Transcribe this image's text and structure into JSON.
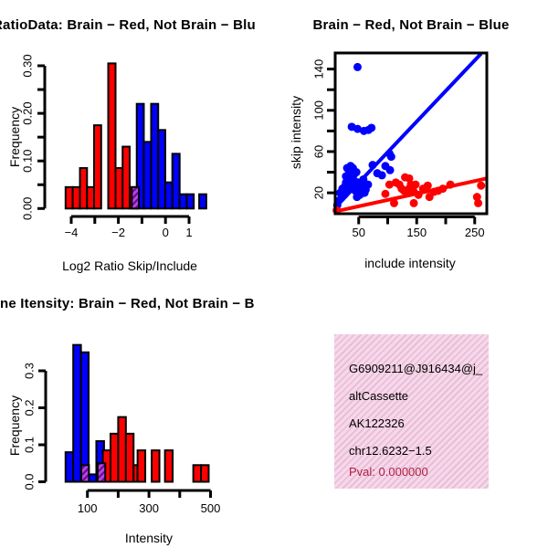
{
  "colors": {
    "black": "#000000",
    "red": "#FF0000",
    "blue": "#0000FF",
    "overlap_base": "#BB44E0",
    "overlap_stripe": "#660A99",
    "pval": "#AF2044",
    "infobox_bg": "#F9D5EF",
    "infobox_stripe": "#C8A8A0"
  },
  "chart_data": [
    {
      "id": "log2-ratio-histogram",
      "type": "bar",
      "title": "RatioData: Brain − Red, Not Brain − Blu",
      "xlabel": "Log2 Ratio Skip/Include",
      "ylabel": "Frequency",
      "xlim": [
        -4.5,
        1.8
      ],
      "ylim": [
        0,
        0.3
      ],
      "x_ticks": [
        {
          "v": -4,
          "l": "−4"
        },
        {
          "v": -3
        },
        {
          "v": -2,
          "l": "−2"
        },
        {
          "v": -1
        },
        {
          "v": 0,
          "l": "0"
        },
        {
          "v": 1,
          "l": "1"
        }
      ],
      "y_ticks": [
        {
          "v": 0,
          "l": "0.00"
        },
        {
          "v": 0.05
        },
        {
          "v": 0.1,
          "l": "0.10"
        },
        {
          "v": 0.15
        },
        {
          "v": 0.2,
          "l": "0.20"
        },
        {
          "v": 0.25
        },
        {
          "v": 0.3,
          "l": "0.30"
        }
      ],
      "bars": [
        {
          "x0": -4.24,
          "x1": -3.94,
          "h": 0.045,
          "c": "red"
        },
        {
          "x0": -3.94,
          "x1": -3.63,
          "h": 0.045,
          "c": "red"
        },
        {
          "x0": -3.63,
          "x1": -3.33,
          "h": 0.085,
          "c": "red"
        },
        {
          "x0": -3.33,
          "x1": -3.03,
          "h": 0.045,
          "c": "red"
        },
        {
          "x0": -3.03,
          "x1": -2.73,
          "h": 0.175,
          "c": "red"
        },
        {
          "x0": -2.43,
          "x1": -2.12,
          "h": 0.305,
          "c": "red"
        },
        {
          "x0": -2.12,
          "x1": -1.82,
          "h": 0.085,
          "c": "red"
        },
        {
          "x0": -1.82,
          "x1": -1.52,
          "h": 0.13,
          "c": "red"
        },
        {
          "x0": -1.52,
          "x1": -1.22,
          "h": 0.045,
          "c": "red"
        },
        {
          "x0": -1.22,
          "x1": -0.92,
          "h": 0.22,
          "c": "blue"
        },
        {
          "x0": -0.92,
          "x1": -0.61,
          "h": 0.14,
          "c": "blue"
        },
        {
          "x0": -0.61,
          "x1": -0.31,
          "h": 0.22,
          "c": "blue"
        },
        {
          "x0": -0.31,
          "x1": -0.01,
          "h": 0.165,
          "c": "blue"
        },
        {
          "x0": -0.01,
          "x1": 0.29,
          "h": 0.055,
          "c": "blue"
        },
        {
          "x0": 0.29,
          "x1": 0.6,
          "h": 0.115,
          "c": "blue"
        },
        {
          "x0": 0.6,
          "x1": 0.9,
          "h": 0.03,
          "c": "blue"
        },
        {
          "x0": 0.9,
          "x1": 1.2,
          "h": 0.03,
          "c": "blue"
        },
        {
          "x0": 1.43,
          "x1": 1.73,
          "h": 0.03,
          "c": "blue"
        },
        {
          "x0": -1.43,
          "x1": -1.13,
          "h": 0.045,
          "c": "overlap"
        }
      ]
    },
    {
      "id": "intensity-scatter",
      "type": "scatter",
      "title": "Brain − Red, Not Brain − Blue",
      "xlabel": "include intensity",
      "ylabel": "skip intensity",
      "xlim": [
        9,
        271
      ],
      "ylim": [
        0,
        155
      ],
      "x_ticks": [
        {
          "v": 50,
          "l": "50"
        },
        {
          "v": 100
        },
        {
          "v": 150,
          "l": "150"
        },
        {
          "v": 200
        },
        {
          "v": 250,
          "l": "250"
        }
      ],
      "y_ticks": [
        {
          "v": 20,
          "l": "20"
        },
        {
          "v": 40
        },
        {
          "v": 60,
          "l": "60"
        },
        {
          "v": 80
        },
        {
          "v": 100,
          "l": "100"
        },
        {
          "v": 120
        },
        {
          "v": 140,
          "l": "140"
        }
      ],
      "series": [
        {
          "name": "not-brain-blue",
          "color": "blue",
          "points": [
            [
              48,
              142
            ],
            [
              38,
              84
            ],
            [
              48,
              82
            ],
            [
              59,
              80
            ],
            [
              67,
              81
            ],
            [
              72,
              83
            ],
            [
              103,
              58
            ],
            [
              106,
              55
            ],
            [
              74,
              47
            ],
            [
              82,
              39
            ],
            [
              96,
              46
            ],
            [
              104,
              42
            ],
            [
              90,
              37
            ],
            [
              30,
              44
            ],
            [
              36,
              46
            ],
            [
              40,
              44
            ],
            [
              34,
              40
            ],
            [
              28,
              36
            ],
            [
              42,
              38
            ],
            [
              46,
              40
            ],
            [
              38,
              34
            ],
            [
              32,
              30
            ],
            [
              44,
              31
            ],
            [
              50,
              30
            ],
            [
              36,
              28
            ],
            [
              28,
              30
            ],
            [
              55,
              28
            ],
            [
              58,
              33
            ],
            [
              48,
              26
            ],
            [
              40,
              25
            ],
            [
              34,
              24
            ],
            [
              30,
              22
            ],
            [
              44,
              22
            ],
            [
              50,
              24
            ],
            [
              56,
              25
            ],
            [
              62,
              23
            ],
            [
              66,
              28
            ],
            [
              25,
              18
            ],
            [
              20,
              15
            ],
            [
              15,
              12
            ],
            [
              13,
              8
            ],
            [
              52,
              18
            ],
            [
              47,
              16
            ],
            [
              60,
              20
            ],
            [
              22,
              24
            ],
            [
              18,
              20
            ],
            [
              26,
              26
            ]
          ]
        },
        {
          "name": "brain-red",
          "color": "red",
          "points": [
            [
              12,
              3
            ],
            [
              96,
              19
            ],
            [
              103,
              28
            ],
            [
              111,
              10
            ],
            [
              114,
              30
            ],
            [
              120,
              28
            ],
            [
              124,
              24
            ],
            [
              128,
              22
            ],
            [
              130,
              35
            ],
            [
              135,
              22
            ],
            [
              137,
              34
            ],
            [
              137,
              24
            ],
            [
              140,
              28
            ],
            [
              145,
              21
            ],
            [
              145,
              10
            ],
            [
              148,
              28
            ],
            [
              153,
              18
            ],
            [
              161,
              24
            ],
            [
              169,
              27
            ],
            [
              172,
              16
            ],
            [
              180,
              21
            ],
            [
              187,
              22
            ],
            [
              195,
              24
            ],
            [
              208,
              28
            ],
            [
              261,
              27
            ],
            [
              254,
              16
            ],
            [
              256,
              10
            ]
          ]
        }
      ],
      "lines": [
        {
          "name": "fit-line-blue",
          "color": "blue",
          "p": [
            10,
            6,
            261,
            155
          ]
        },
        {
          "name": "fit-line-red",
          "color": "red",
          "p": [
            10,
            2,
            271,
            34
          ]
        }
      ]
    },
    {
      "id": "gene-intensity-histogram",
      "type": "bar",
      "title": "ne Itensity: Brain − Red, Not Brain − B",
      "xlabel": "Intensity",
      "ylabel": "Frequency",
      "xlim": [
        25,
        520
      ],
      "ylim": [
        0,
        0.37
      ],
      "x_ticks": [
        {
          "v": 100,
          "l": "100"
        },
        {
          "v": 200
        },
        {
          "v": 300,
          "l": "300"
        },
        {
          "v": 400
        },
        {
          "v": 500,
          "l": "500"
        }
      ],
      "y_ticks": [
        {
          "v": 0,
          "l": "0.0"
        },
        {
          "v": 0.1,
          "l": "0.1"
        },
        {
          "v": 0.2,
          "l": "0.2"
        },
        {
          "v": 0.3,
          "l": "0.3"
        }
      ],
      "bars": [
        {
          "x0": 29,
          "x1": 54,
          "h": 0.08,
          "c": "blue"
        },
        {
          "x0": 54,
          "x1": 79,
          "h": 0.37,
          "c": "blue"
        },
        {
          "x0": 79,
          "x1": 104,
          "h": 0.35,
          "c": "blue"
        },
        {
          "x0": 104,
          "x1": 129,
          "h": 0.02,
          "c": "blue"
        },
        {
          "x0": 129,
          "x1": 154,
          "h": 0.11,
          "c": "blue"
        },
        {
          "x0": 150,
          "x1": 175,
          "h": 0.085,
          "c": "red"
        },
        {
          "x0": 175,
          "x1": 200,
          "h": 0.13,
          "c": "red"
        },
        {
          "x0": 200,
          "x1": 225,
          "h": 0.175,
          "c": "red"
        },
        {
          "x0": 225,
          "x1": 250,
          "h": 0.13,
          "c": "red"
        },
        {
          "x0": 250,
          "x1": 263,
          "h": 0.045,
          "c": "red"
        },
        {
          "x0": 263,
          "x1": 288,
          "h": 0.085,
          "c": "red"
        },
        {
          "x0": 309,
          "x1": 334,
          "h": 0.085,
          "c": "red"
        },
        {
          "x0": 352,
          "x1": 377,
          "h": 0.085,
          "c": "red"
        },
        {
          "x0": 444,
          "x1": 469,
          "h": 0.045,
          "c": "red"
        },
        {
          "x0": 469,
          "x1": 494,
          "h": 0.045,
          "c": "red"
        },
        {
          "x0": 80,
          "x1": 105,
          "h": 0.045,
          "c": "overlap"
        },
        {
          "x0": 133,
          "x1": 158,
          "h": 0.05,
          "c": "overlap"
        }
      ]
    }
  ],
  "info_box": {
    "lines": [
      {
        "text": "G6909211@J916434@j_",
        "color": "black"
      },
      {
        "text": "altCassette",
        "color": "black"
      },
      {
        "text": "AK122326",
        "color": "black"
      },
      {
        "text": "chr12.6232−1.5",
        "color": "black"
      },
      {
        "text": "Pval: 0.000000",
        "color": "pval"
      }
    ]
  }
}
